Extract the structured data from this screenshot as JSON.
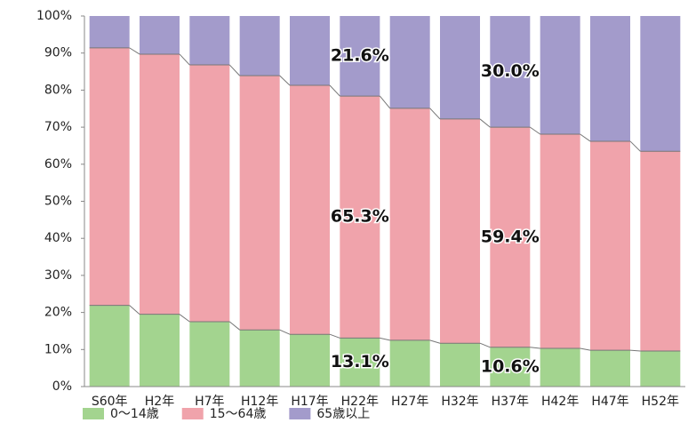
{
  "chart_data": {
    "type": "stacked-bar",
    "categories": [
      "S60年",
      "H2年",
      "H7年",
      "H12年",
      "H17年",
      "H22年",
      "H27年",
      "H32年",
      "H37年",
      "H42年",
      "H47年",
      "H52年"
    ],
    "series": [
      {
        "name": "0～14歳",
        "color": "#a3d48f",
        "values": [
          21.9,
          19.5,
          17.5,
          15.3,
          14.1,
          13.1,
          12.5,
          11.7,
          10.6,
          10.3,
          9.8,
          9.6
        ],
        "value_labels": [
          null,
          null,
          null,
          null,
          null,
          "13.1%",
          null,
          null,
          "10.6%",
          null,
          null,
          null
        ]
      },
      {
        "name": "15～64歳",
        "color": "#f0a3ab",
        "values": [
          69.5,
          70.2,
          69.3,
          68.6,
          67.2,
          65.3,
          62.6,
          60.5,
          59.4,
          57.8,
          56.4,
          53.9
        ],
        "value_labels": [
          null,
          null,
          null,
          null,
          null,
          "65.3%",
          null,
          null,
          "59.4%",
          null,
          null,
          null
        ]
      },
      {
        "name": "65歳以上",
        "color": "#a39bcb",
        "values": [
          8.6,
          10.3,
          13.2,
          16.1,
          18.7,
          21.6,
          24.9,
          27.8,
          30.0,
          31.9,
          33.8,
          36.5
        ],
        "value_labels": [
          null,
          null,
          null,
          null,
          null,
          "21.6%",
          null,
          null,
          "30.0%",
          null,
          null,
          null
        ]
      }
    ],
    "ylim": [
      0,
      100
    ],
    "yticks": [
      {
        "value": 0,
        "label": "0%"
      },
      {
        "value": 10,
        "label": "10%"
      },
      {
        "value": 20,
        "label": "20%"
      },
      {
        "value": 30,
        "label": "30%"
      },
      {
        "value": 40,
        "label": "40%"
      },
      {
        "value": 50,
        "label": "50%"
      },
      {
        "value": 60,
        "label": "60%"
      },
      {
        "value": 70,
        "label": "70%"
      },
      {
        "value": 80,
        "label": "80%"
      },
      {
        "value": 90,
        "label": "90%"
      },
      {
        "value": 100,
        "label": "100%"
      }
    ]
  }
}
